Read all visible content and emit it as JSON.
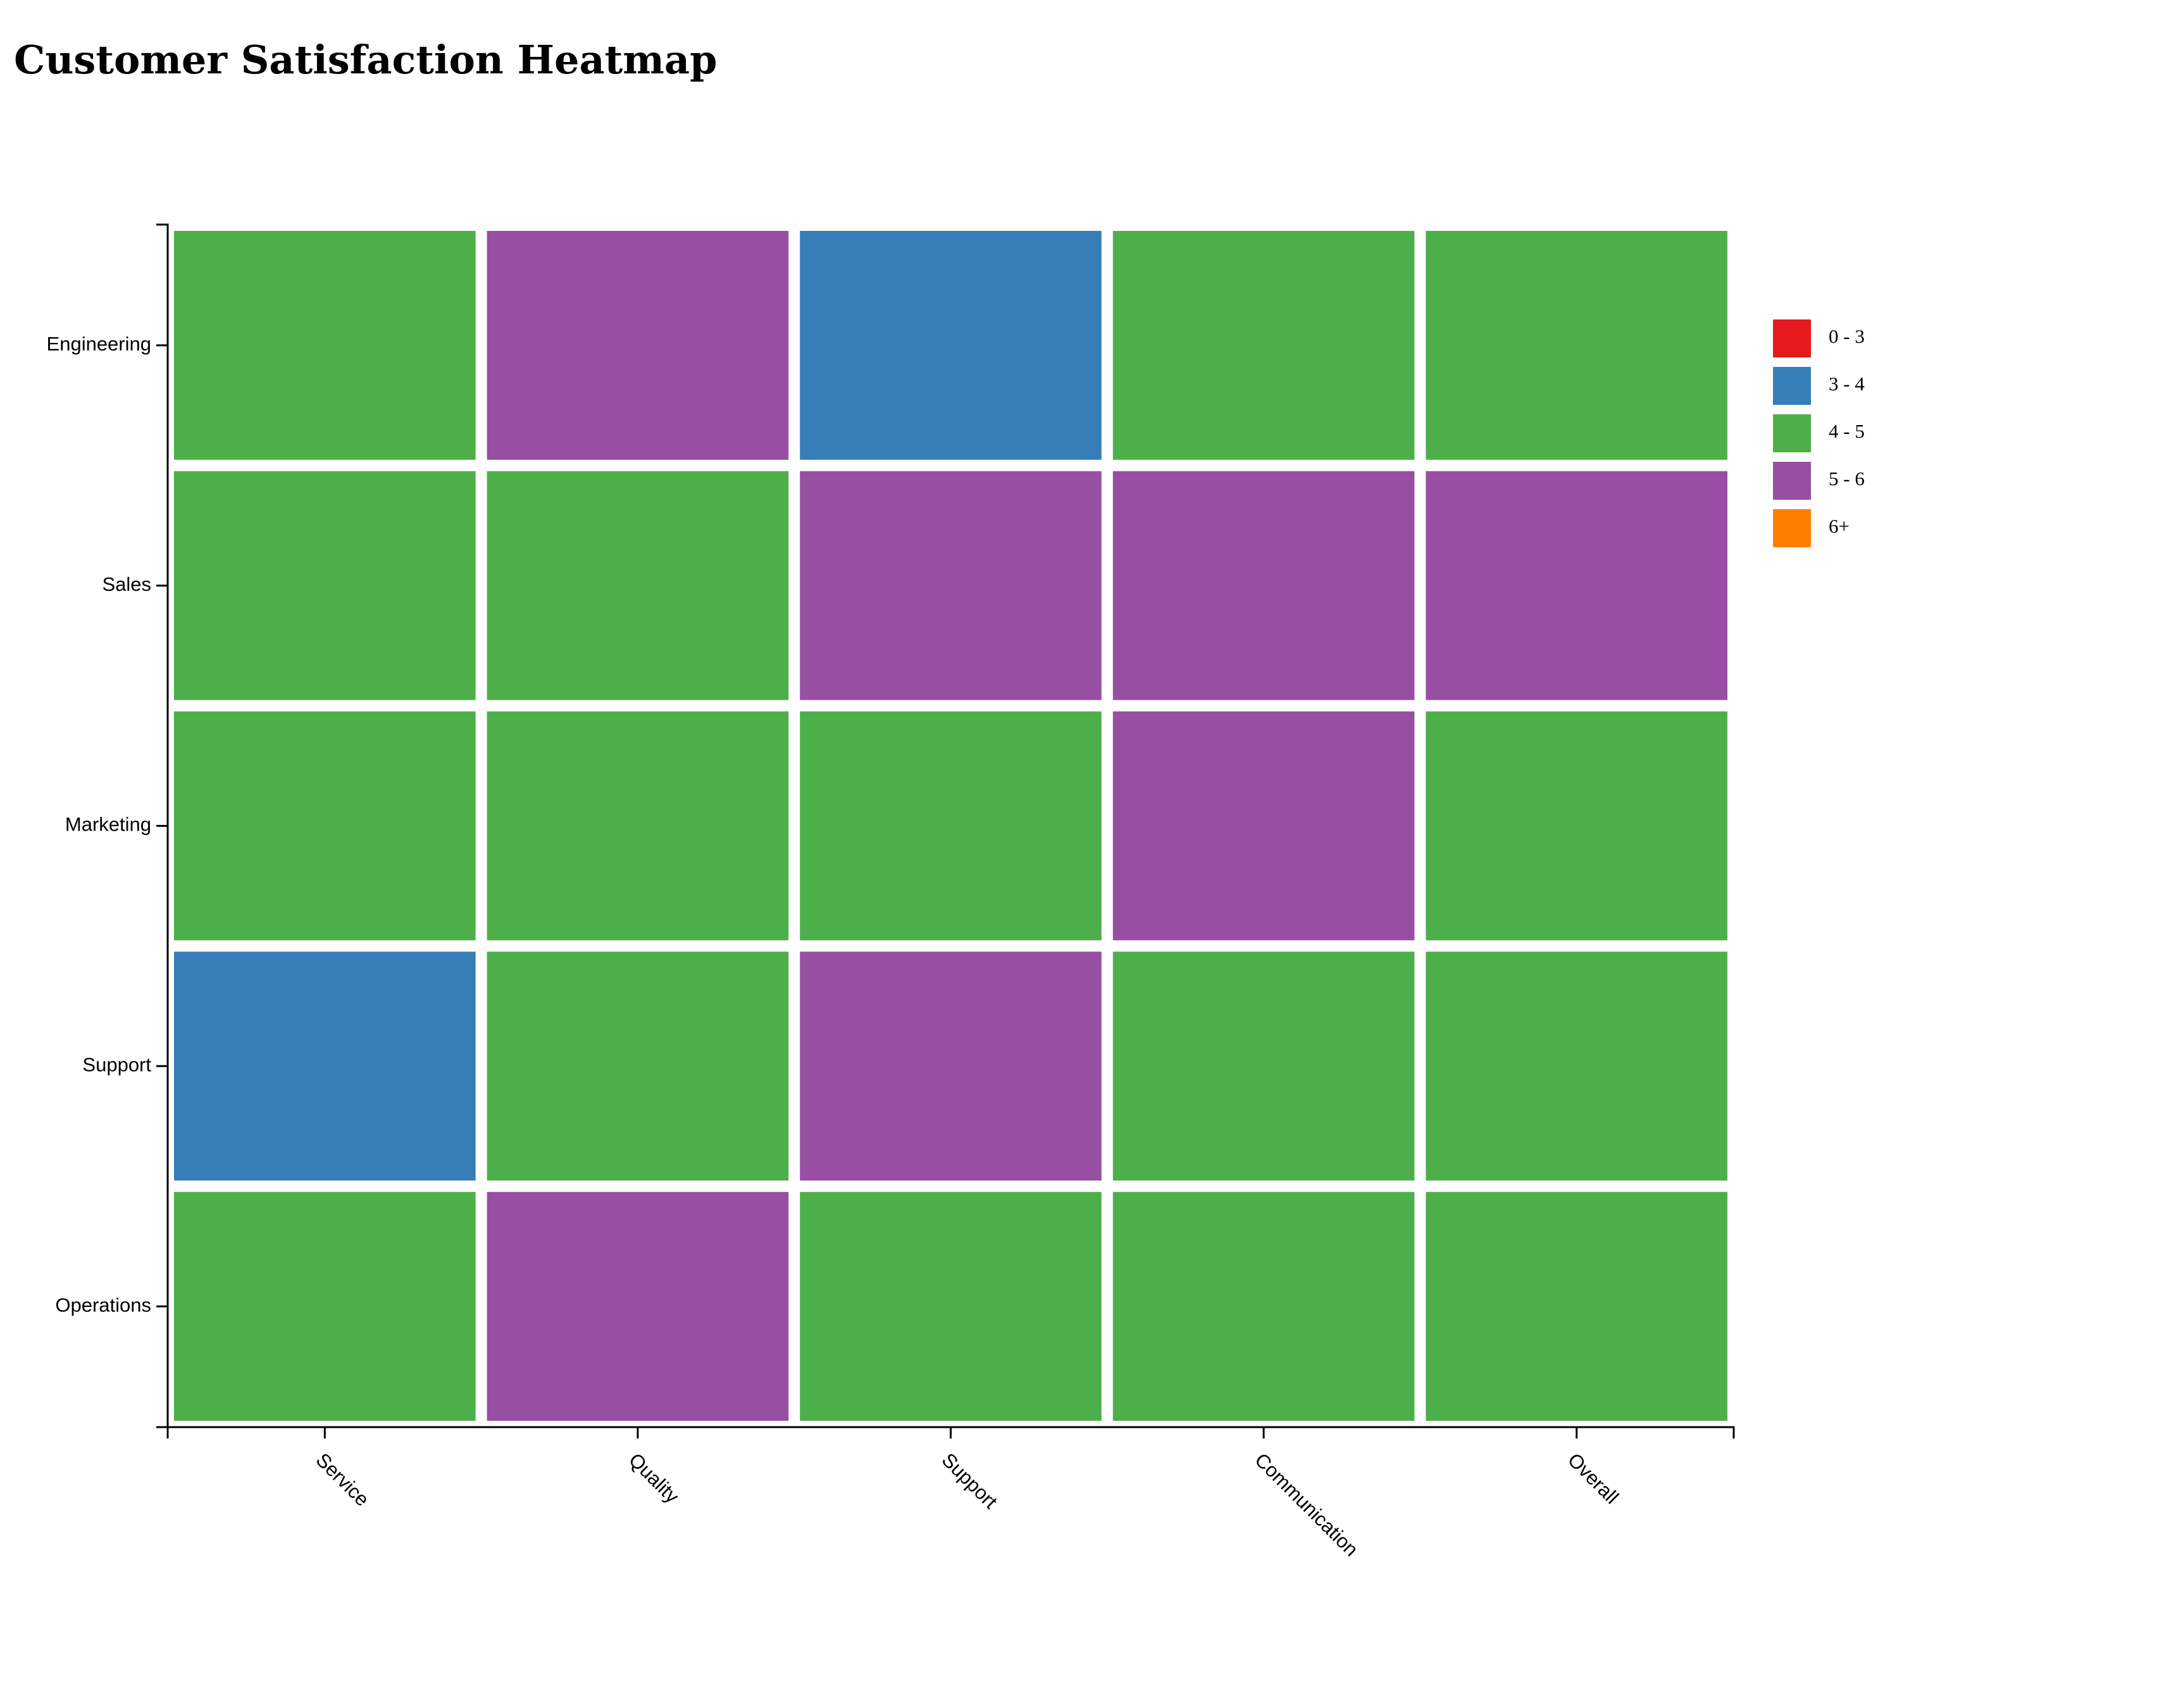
{
  "chart_data": {
    "type": "heatmap",
    "title": "Customer Satisfaction Heatmap",
    "x_categories": [
      "Service",
      "Quality",
      "Support",
      "Communication",
      "Overall"
    ],
    "y_categories": [
      "Engineering",
      "Sales",
      "Marketing",
      "Support",
      "Operations"
    ],
    "xlabel": "",
    "ylabel": "",
    "values": [
      [
        4.5,
        5.5,
        3.5,
        4.5,
        4.5
      ],
      [
        4.5,
        4.5,
        5.5,
        5.5,
        5.5
      ],
      [
        4.5,
        4.5,
        4.5,
        5.5,
        4.5
      ],
      [
        3.5,
        4.5,
        5.5,
        4.5,
        4.5
      ],
      [
        4.5,
        5.5,
        4.5,
        4.5,
        4.5
      ]
    ],
    "legend": {
      "placement": "right",
      "bins": [
        {
          "label": "0 - 3",
          "min": 0,
          "max": 3,
          "color": "#e41a1c"
        },
        {
          "label": "3 - 4",
          "min": 3,
          "max": 4,
          "color": "#377eb8"
        },
        {
          "label": "4 - 5",
          "min": 4,
          "max": 5,
          "color": "#4daf4a"
        },
        {
          "label": "5 - 6",
          "min": 5,
          "max": 6,
          "color": "#984ea3"
        },
        {
          "label": "6+",
          "min": 6,
          "max": null,
          "color": "#ff7f00"
        }
      ]
    },
    "grid": false
  }
}
